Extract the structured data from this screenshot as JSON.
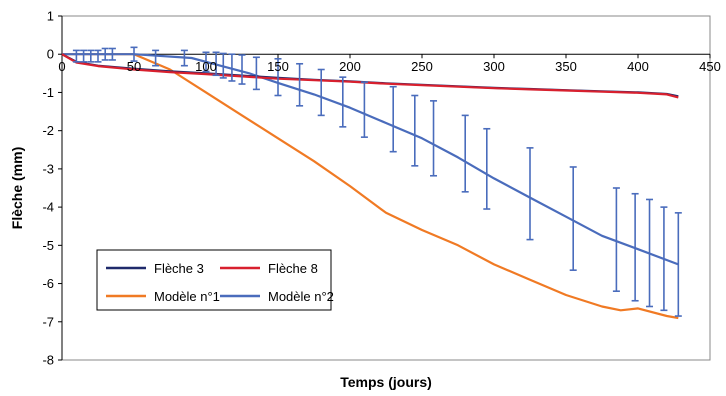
{
  "chart_data": {
    "type": "line",
    "title": "",
    "xlabel": "Temps (jours)",
    "ylabel": "Flèche (mm)",
    "xlim": [
      0,
      450
    ],
    "ylim": [
      -8,
      1
    ],
    "xticks": [
      0,
      50,
      100,
      150,
      200,
      250,
      300,
      350,
      400,
      450
    ],
    "yticks": [
      1,
      0,
      -1,
      -2,
      -3,
      -4,
      -5,
      -6,
      -7,
      -8
    ],
    "grid": false,
    "legend_position": "bottom-left",
    "series": [
      {
        "name": "Flèche 3",
        "color": "#1f2a6b",
        "x": [
          0,
          10,
          25,
          50,
          75,
          100,
          125,
          150,
          175,
          200,
          225,
          250,
          275,
          300,
          325,
          350,
          375,
          400,
          420,
          428
        ],
        "y": [
          0,
          -0.2,
          -0.3,
          -0.38,
          -0.45,
          -0.5,
          -0.56,
          -0.62,
          -0.67,
          -0.71,
          -0.76,
          -0.8,
          -0.84,
          -0.88,
          -0.91,
          -0.94,
          -0.97,
          -1.0,
          -1.04,
          -1.1
        ]
      },
      {
        "name": "Flèche 8",
        "color": "#d8202e",
        "x": [
          0,
          10,
          25,
          50,
          75,
          100,
          125,
          150,
          175,
          200,
          225,
          250,
          275,
          300,
          325,
          350,
          375,
          400,
          420,
          428
        ],
        "y": [
          0,
          -0.22,
          -0.31,
          -0.4,
          -0.47,
          -0.52,
          -0.58,
          -0.64,
          -0.68,
          -0.72,
          -0.77,
          -0.81,
          -0.85,
          -0.89,
          -0.92,
          -0.95,
          -0.98,
          -1.01,
          -1.05,
          -1.13
        ]
      },
      {
        "name": "Modèle n°1",
        "color": "#f07a24",
        "x": [
          0,
          50,
          75,
          100,
          125,
          150,
          175,
          200,
          225,
          250,
          275,
          300,
          325,
          350,
          375,
          388,
          400,
          420,
          428
        ],
        "y": [
          0,
          0,
          -0.4,
          -1.0,
          -1.6,
          -2.2,
          -2.8,
          -3.45,
          -4.15,
          -4.6,
          -5.0,
          -5.5,
          -5.9,
          -6.3,
          -6.6,
          -6.7,
          -6.65,
          -6.85,
          -6.9
        ]
      },
      {
        "name": "Modèle n°2",
        "color": "#4a6cbc",
        "x": [
          0,
          50,
          90,
          110,
          130,
          150,
          175,
          200,
          225,
          250,
          275,
          300,
          325,
          350,
          375,
          400,
          428
        ],
        "y": [
          0,
          0,
          -0.1,
          -0.3,
          -0.5,
          -0.75,
          -1.05,
          -1.4,
          -1.8,
          -2.2,
          -2.7,
          -3.25,
          -3.75,
          -4.25,
          -4.75,
          -5.1,
          -5.5
        ]
      }
    ],
    "error_bars": {
      "series": "Modèle n°2",
      "x": [
        10,
        15,
        20,
        25,
        30,
        35,
        50,
        65,
        85,
        100,
        107,
        112,
        118,
        125,
        135,
        150,
        165,
        180,
        195,
        210,
        230,
        245,
        258,
        280,
        295,
        325,
        355,
        385,
        398,
        408,
        418,
        428
      ],
      "y": [
        -0.05,
        -0.05,
        -0.05,
        -0.05,
        0,
        0,
        0,
        -0.1,
        -0.1,
        -0.2,
        -0.25,
        -0.3,
        -0.35,
        -0.4,
        -0.5,
        -0.6,
        -0.8,
        -1.0,
        -1.25,
        -1.45,
        -1.7,
        -2.0,
        -2.2,
        -2.6,
        -3.0,
        -3.65,
        -4.3,
        -4.85,
        -5.05,
        -5.2,
        -5.35,
        -5.5
      ],
      "err": [
        0.15,
        0.15,
        0.15,
        0.15,
        0.15,
        0.15,
        0.18,
        0.2,
        0.2,
        0.25,
        0.3,
        0.32,
        0.35,
        0.38,
        0.42,
        0.48,
        0.55,
        0.6,
        0.65,
        0.72,
        0.85,
        0.92,
        0.98,
        1.0,
        1.05,
        1.2,
        1.35,
        1.35,
        1.4,
        1.4,
        1.35,
        1.35
      ]
    }
  }
}
